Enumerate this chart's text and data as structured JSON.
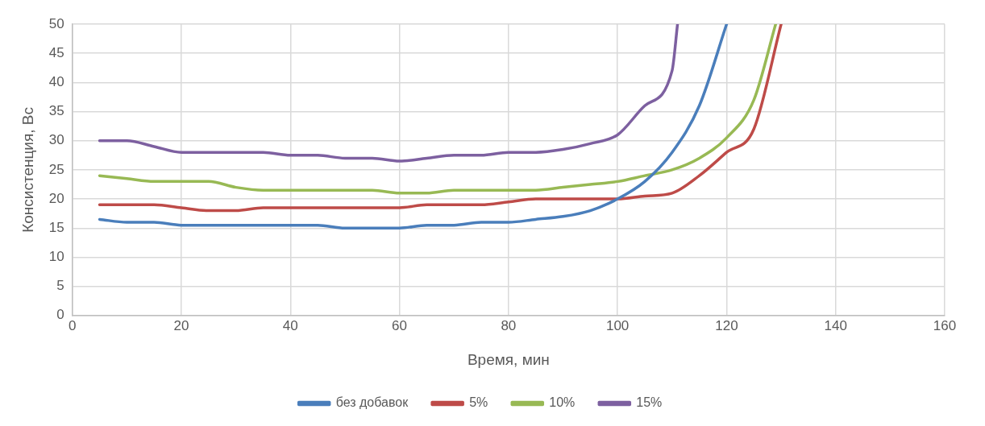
{
  "chart_data": {
    "type": "line",
    "xlabel": "Время, мин",
    "ylabel": "Консистенция, Вс",
    "xlim": [
      0,
      160
    ],
    "xticks": [
      0,
      20,
      40,
      60,
      80,
      100,
      120,
      140,
      160
    ],
    "ylim": [
      0,
      50
    ],
    "yticks": [
      0,
      5,
      10,
      15,
      20,
      25,
      30,
      35,
      40,
      45,
      50
    ],
    "grid": true,
    "legend": "bottom",
    "marker": "none",
    "line_style": "solid",
    "series": [
      {
        "name": "без добавок",
        "color": "#4a7ebb",
        "x": [
          5,
          10,
          15,
          20,
          25,
          30,
          35,
          40,
          45,
          50,
          55,
          60,
          65,
          70,
          75,
          80,
          85,
          90,
          95,
          100,
          105,
          110,
          115,
          120
        ],
        "values": [
          16.5,
          16,
          16,
          15.5,
          15.5,
          15.5,
          15.5,
          15.5,
          15.5,
          15,
          15,
          15,
          15.5,
          15.5,
          16,
          16,
          16.5,
          17,
          18,
          20,
          23,
          28,
          36,
          50
        ]
      },
      {
        "name": "5%",
        "color": "#be4b48",
        "x": [
          5,
          10,
          15,
          20,
          25,
          30,
          35,
          40,
          45,
          50,
          55,
          60,
          65,
          70,
          75,
          80,
          85,
          90,
          95,
          100,
          105,
          110,
          115,
          120,
          125,
          130
        ],
        "values": [
          19,
          19,
          19,
          18.5,
          18,
          18,
          18.5,
          18.5,
          18.5,
          18.5,
          18.5,
          18.5,
          19,
          19,
          19,
          19.5,
          20,
          20,
          20,
          20,
          20.5,
          21,
          24,
          28,
          32,
          50
        ]
      },
      {
        "name": "10%",
        "color": "#98b954",
        "x": [
          5,
          10,
          15,
          20,
          25,
          30,
          35,
          40,
          45,
          50,
          55,
          60,
          65,
          70,
          75,
          80,
          85,
          90,
          95,
          100,
          105,
          110,
          115,
          120,
          125,
          129
        ],
        "values": [
          24,
          23.5,
          23,
          23,
          23,
          22,
          21.5,
          21.5,
          21.5,
          21.5,
          21.5,
          21,
          21,
          21.5,
          21.5,
          21.5,
          21.5,
          22,
          22.5,
          23,
          24,
          25,
          27,
          30.5,
          37,
          50
        ]
      },
      {
        "name": "15%",
        "color": "#7d60a0",
        "x": [
          5,
          10,
          15,
          20,
          25,
          30,
          35,
          40,
          45,
          50,
          55,
          60,
          65,
          70,
          75,
          80,
          85,
          90,
          95,
          100,
          105,
          110,
          111
        ],
        "values": [
          30,
          30,
          29,
          28,
          28,
          28,
          28,
          27.5,
          27.5,
          27,
          27,
          26.5,
          27,
          27.5,
          27.5,
          28,
          28,
          28.5,
          29.5,
          31,
          36,
          42,
          50
        ]
      }
    ]
  }
}
